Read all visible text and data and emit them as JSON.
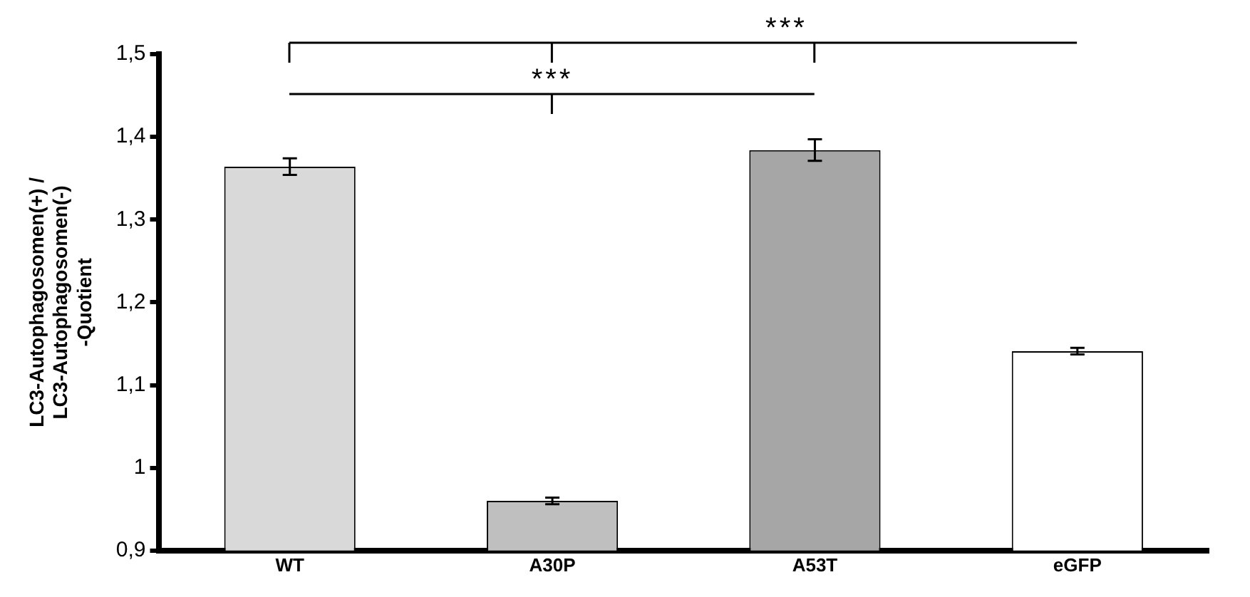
{
  "chart_data": {
    "type": "bar",
    "ylabel": "LC3-Autophagosomen(+) / LC3-Autophagosomen(-) -Quotient",
    "categories": [
      "WT",
      "A30P",
      "A53T",
      "eGFP"
    ],
    "values": [
      1.364,
      0.96,
      1.384,
      1.141
    ],
    "colors": [
      "#d9d9d9",
      "#bfbfbf",
      "#a6a6a6",
      "#ffffff"
    ],
    "errors": [
      0.01,
      0.004,
      0.013,
      0.004
    ],
    "ylim": [
      0.9,
      1.5
    ],
    "yticks": [
      {
        "value": 0.9,
        "label": "0,9"
      },
      {
        "value": 1,
        "label": "1"
      },
      {
        "value": 1.1,
        "label": "1,1"
      },
      {
        "value": 1.2,
        "label": "1,2"
      },
      {
        "value": 1.3,
        "label": "1,3"
      },
      {
        "value": 1.4,
        "label": "1,4"
      },
      {
        "value": 1.5,
        "label": "1,5"
      }
    ],
    "annotations": [
      "***",
      "***"
    ],
    "grid": false,
    "legend": false
  }
}
